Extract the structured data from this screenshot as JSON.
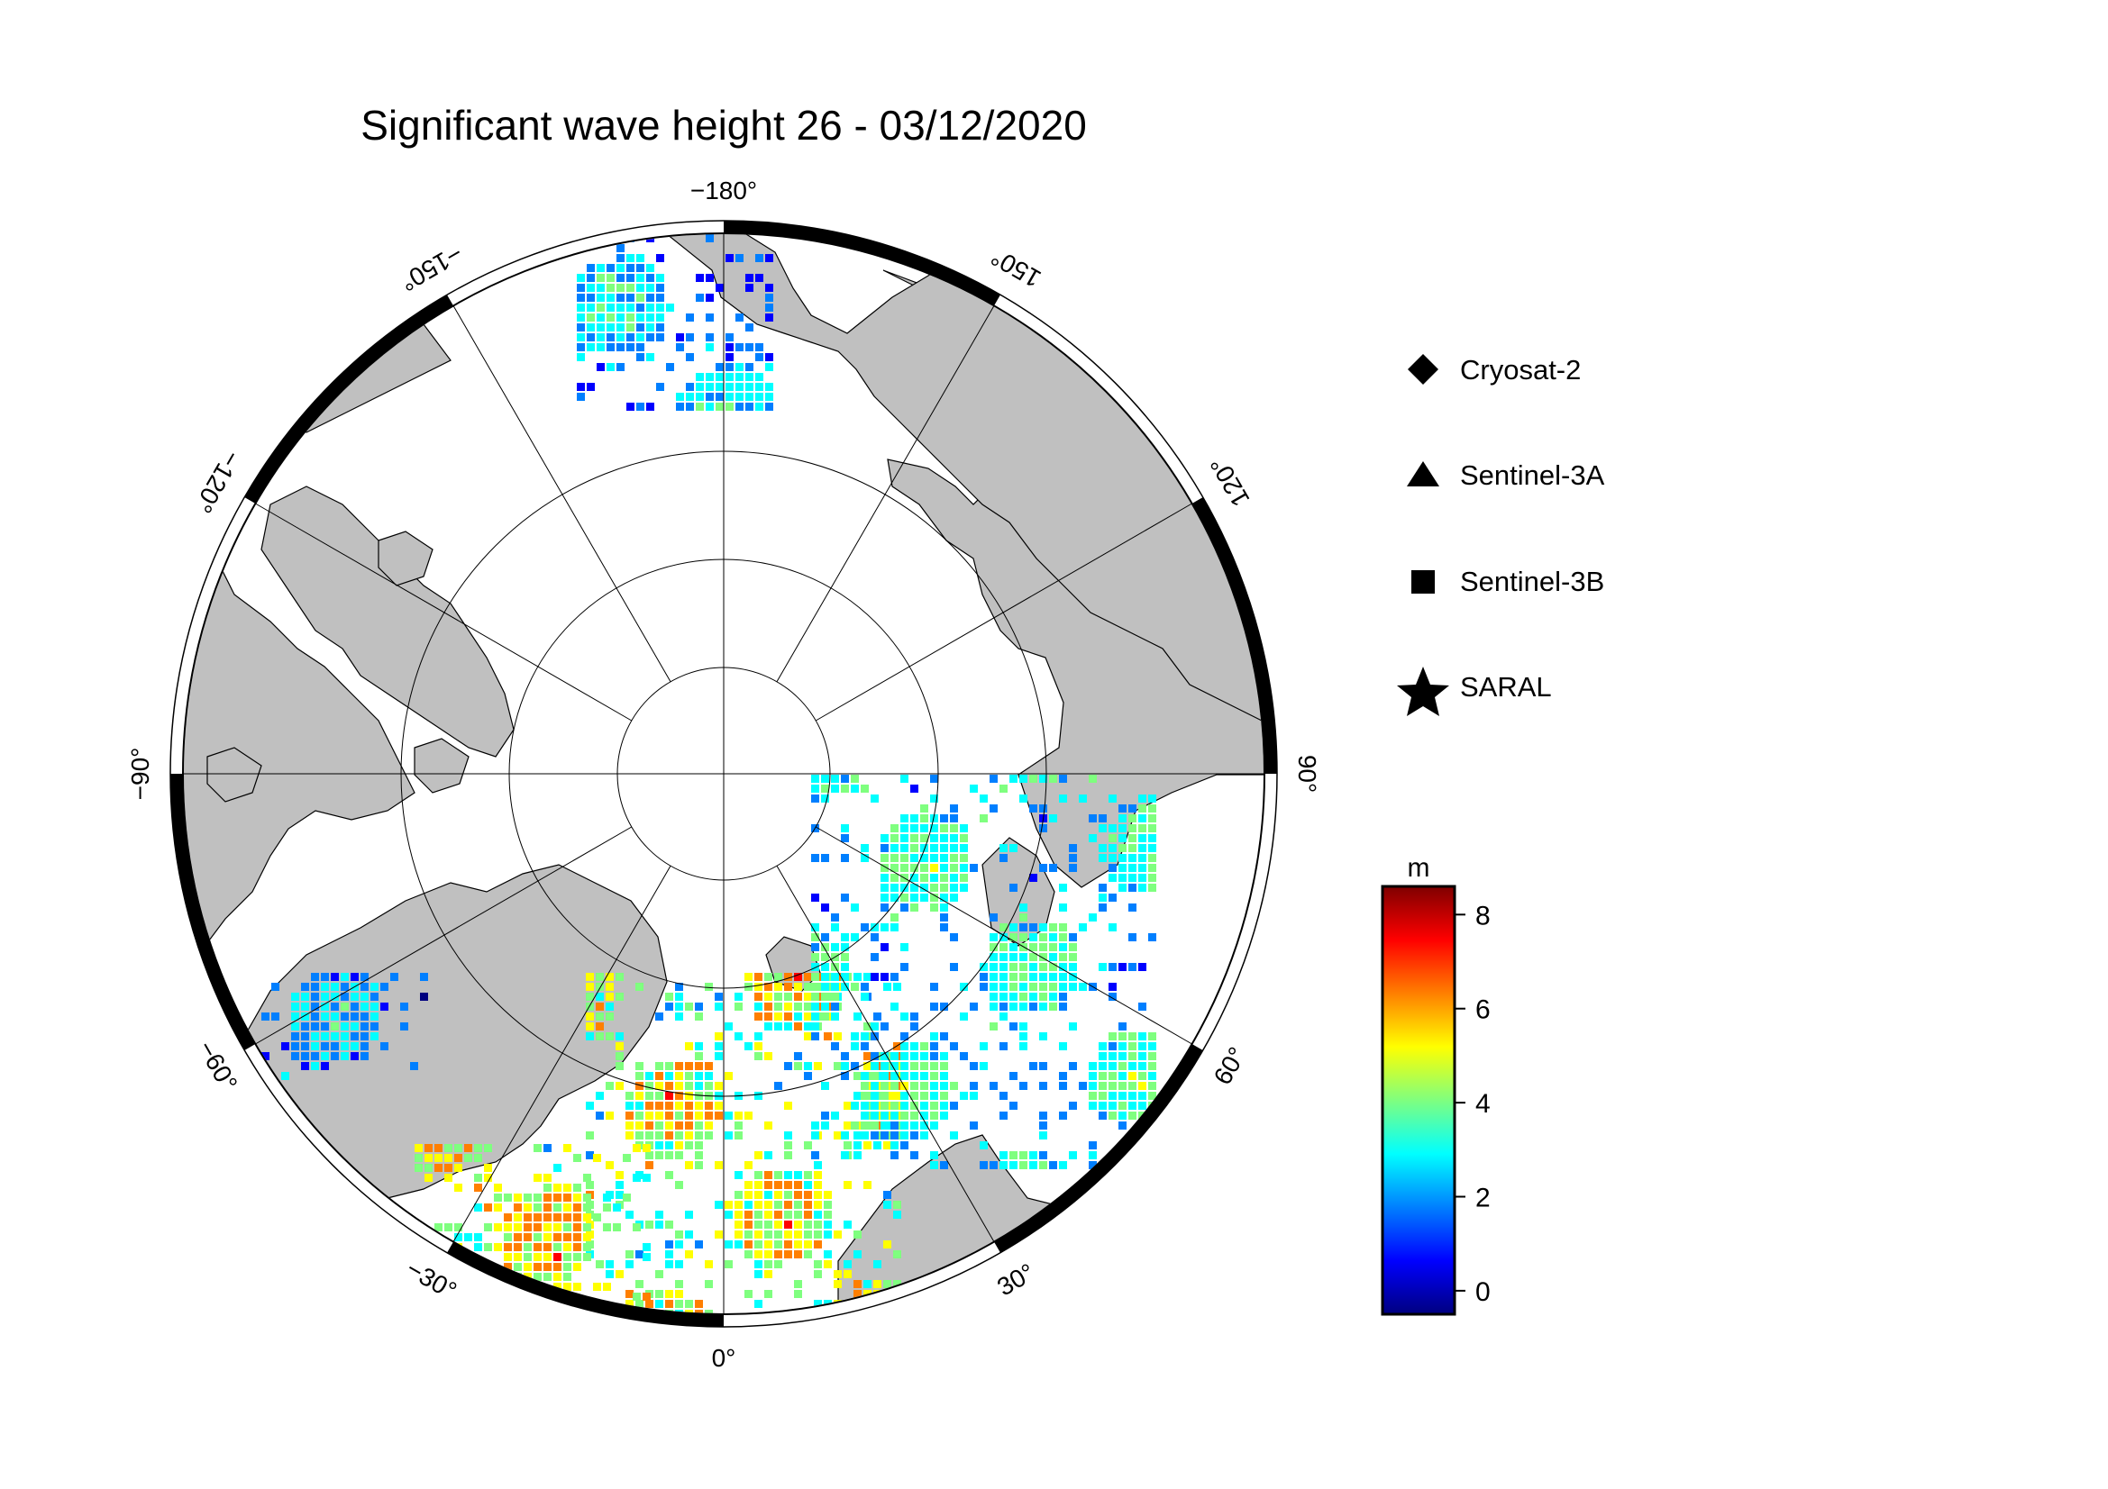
{
  "title": "Significant wave height 26 - 03/12/2020",
  "map": {
    "projection": "north polar stereographic",
    "graticule_longitudes": [
      -180,
      -150,
      -120,
      -90,
      -60,
      -30,
      0,
      30,
      60,
      90,
      120,
      150
    ],
    "graticule_latitude_circles": 3,
    "longitude_labels": [
      {
        "lon": -180,
        "text": "−180°"
      },
      {
        "lon": 150,
        "text": "150°"
      },
      {
        "lon": 120,
        "text": "120°"
      },
      {
        "lon": 90,
        "text": "90°"
      },
      {
        "lon": 60,
        "text": "60°"
      },
      {
        "lon": 30,
        "text": "30°"
      },
      {
        "lon": 0,
        "text": "0°"
      },
      {
        "lon": -30,
        "text": "−30°"
      },
      {
        "lon": -60,
        "text": "−60°"
      },
      {
        "lon": -90,
        "text": "−90°"
      },
      {
        "lon": -120,
        "text": "−120°"
      },
      {
        "lon": -150,
        "text": "−150°"
      }
    ],
    "colors": {
      "land": "#c0c0c0",
      "ocean_ice": "#ffffff",
      "frame": "#000000"
    }
  },
  "legend": {
    "items": [
      {
        "symbol": "diamond",
        "label": "Cryosat-2"
      },
      {
        "symbol": "triangle",
        "label": "Sentinel-3A"
      },
      {
        "symbol": "square",
        "label": "Sentinel-3B"
      },
      {
        "symbol": "star",
        "label": "SARAL"
      }
    ]
  },
  "colorbar": {
    "unit": "m",
    "min": -0.5,
    "max": 8.6,
    "ticks": [
      "0",
      "2",
      "4",
      "6",
      "8"
    ],
    "tick_values": [
      0,
      2,
      4,
      6,
      8
    ],
    "colormap": [
      "#00007f",
      "#0000ff",
      "#007fff",
      "#00ffff",
      "#7fff7f",
      "#ffff00",
      "#ff7f00",
      "#ff0000",
      "#7f0000"
    ]
  }
}
